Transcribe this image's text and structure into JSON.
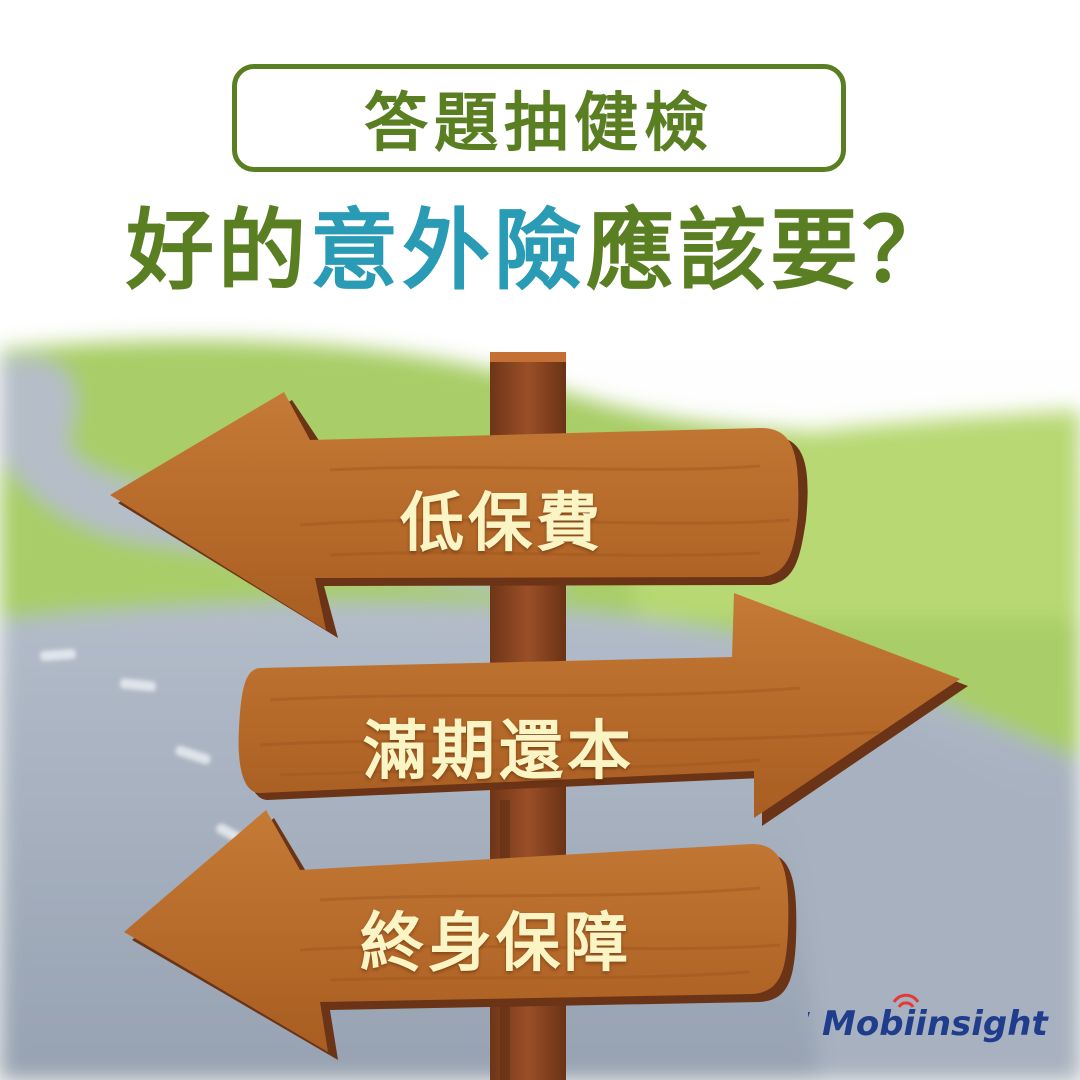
{
  "header": {
    "tag": "答題抽健檢",
    "headline_part1": "好的",
    "headline_highlight": "意外險",
    "headline_part2": "應該要？"
  },
  "signs": [
    {
      "label": "低保費",
      "direction": "left"
    },
    {
      "label": "滿期還本",
      "direction": "right"
    },
    {
      "label": "終身保障",
      "direction": "left"
    }
  ],
  "brand": {
    "logo_text": "Mobiinsight"
  },
  "colors": {
    "title_green": "#5a7f22",
    "title_blue": "#2a9bb5",
    "sign_text": "#fbf4c4",
    "wood": "#b86a2c",
    "logo_blue": "#1f3d8c"
  }
}
